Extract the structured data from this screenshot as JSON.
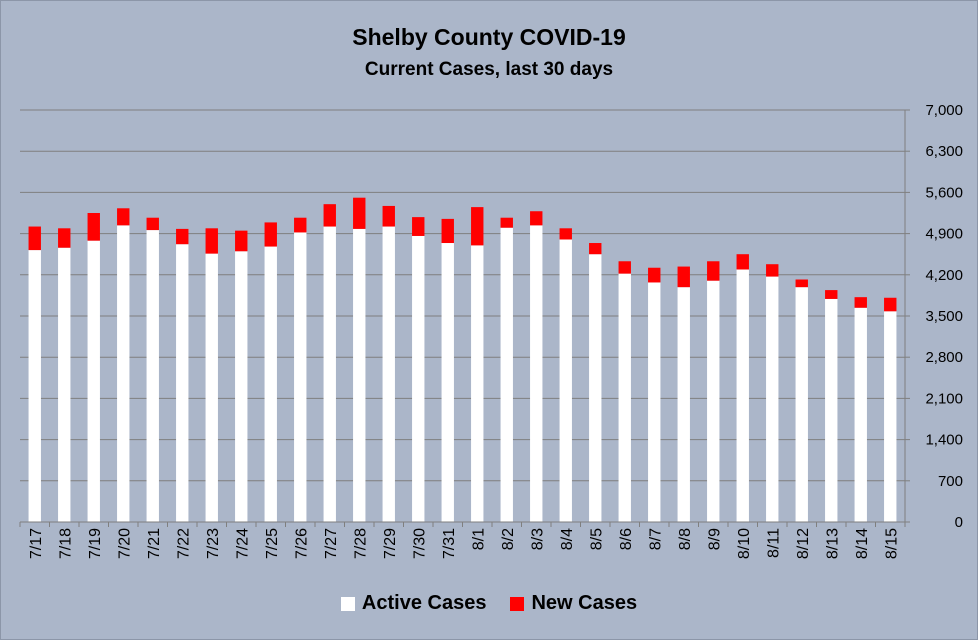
{
  "chart_data": {
    "type": "bar",
    "stacked": true,
    "title": "Shelby County COVID-19",
    "subtitle": "Current Cases, last 30 days",
    "categories": [
      "7/17",
      "7/18",
      "7/19",
      "7/20",
      "7/21",
      "7/22",
      "7/23",
      "7/24",
      "7/25",
      "7/26",
      "7/27",
      "7/28",
      "7/29",
      "7/30",
      "7/31",
      "8/1",
      "8/2",
      "8/3",
      "8/4",
      "8/5",
      "8/6",
      "8/7",
      "8/8",
      "8/9",
      "8/10",
      "8/11",
      "8/12",
      "8/13",
      "8/14",
      "8/15"
    ],
    "series": [
      {
        "name": "Active Cases",
        "color": "#ffffff",
        "values": [
          4620,
          4660,
          4780,
          5040,
          4960,
          4720,
          4560,
          4600,
          4680,
          4920,
          5020,
          4980,
          5020,
          4860,
          4740,
          4700,
          5000,
          5040,
          4800,
          4550,
          4220,
          4070,
          3990,
          4100,
          4290,
          4170,
          3990,
          3790,
          3640,
          3580
        ]
      },
      {
        "name": "New Cases",
        "color": "#ff0000",
        "values": [
          400,
          330,
          470,
          290,
          210,
          260,
          430,
          350,
          410,
          250,
          380,
          530,
          350,
          320,
          410,
          650,
          170,
          240,
          190,
          190,
          210,
          250,
          350,
          330,
          260,
          210,
          130,
          150,
          180,
          230
        ]
      }
    ],
    "ylim": [
      0,
      7000
    ],
    "yticks": [
      0,
      700,
      1400,
      2100,
      2800,
      3500,
      4200,
      4900,
      5600,
      6300,
      7000
    ],
    "ytick_labels": [
      "0",
      "700",
      "1,400",
      "2,100",
      "2,800",
      "3,500",
      "4,200",
      "4,900",
      "5,600",
      "6,300",
      "7,000"
    ],
    "y_axis_side": "right",
    "grid": true,
    "legend_position": "bottom"
  }
}
